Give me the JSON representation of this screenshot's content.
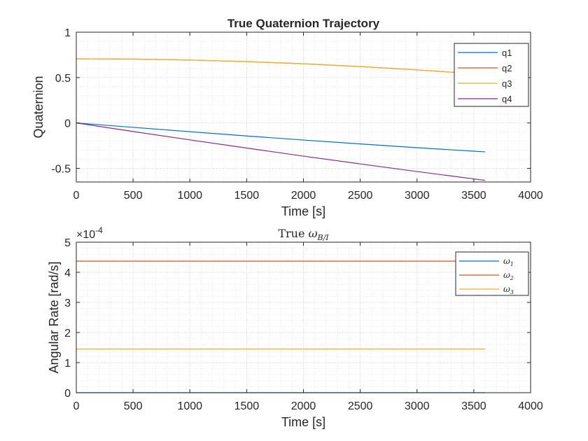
{
  "colors": {
    "c1": "#0072BD",
    "c2": "#D95319",
    "c3": "#EDB120",
    "c4": "#7E2F8E",
    "axis": "#262626",
    "grid_major": "#cfcfcf",
    "grid_minor": "#e3e3e3"
  },
  "chart_data": [
    {
      "type": "line",
      "title": "True Quaternion Trajectory",
      "xlabel": "Time [s]",
      "ylabel": "Quaternion",
      "xlim": [
        0,
        4000
      ],
      "ylim": [
        -0.65,
        1
      ],
      "xticks": [
        0,
        500,
        1000,
        1500,
        2000,
        2500,
        3000,
        3500,
        4000
      ],
      "yticks": [
        -0.5,
        0,
        0.5,
        1
      ],
      "xtick_labels": [
        "0",
        "500",
        "1000",
        "1500",
        "2000",
        "2500",
        "3000",
        "3500",
        "4000"
      ],
      "ytick_labels": [
        "-0.5",
        "0",
        "0.5",
        "1"
      ],
      "grid": "on (major + minor, dotted)",
      "legend_position": "top-right",
      "x": [
        0,
        500,
        1000,
        1500,
        2000,
        2500,
        3000,
        3500,
        3600
      ],
      "series": [
        {
          "name": "q1",
          "color": "#0072BD",
          "values": [
            0.0,
            -0.048,
            -0.096,
            -0.143,
            -0.188,
            -0.231,
            -0.272,
            -0.311,
            -0.318
          ]
        },
        {
          "name": "q2",
          "color": "#D95319",
          "values": [
            0.707,
            0.704,
            0.693,
            0.676,
            0.652,
            0.621,
            0.585,
            0.543,
            0.534
          ]
        },
        {
          "name": "q3",
          "color": "#EDB120",
          "values": [
            0.707,
            0.704,
            0.693,
            0.676,
            0.652,
            0.621,
            0.585,
            0.543,
            0.534
          ]
        },
        {
          "name": "q4",
          "color": "#7E2F8E",
          "values": [
            0.0,
            -0.094,
            -0.186,
            -0.276,
            -0.365,
            -0.451,
            -0.535,
            -0.616,
            -0.632
          ]
        }
      ]
    },
    {
      "type": "line",
      "title_prefix": "True",
      "title_symbol": "ω",
      "title_subscript": "B/I",
      "xlabel": "Time [s]",
      "ylabel": "Angular Rate [rad/s]",
      "y_exponent_base": "×10",
      "y_exponent": "-4",
      "xlim": [
        0,
        4000
      ],
      "ylim": [
        0,
        5
      ],
      "xticks": [
        0,
        500,
        1000,
        1500,
        2000,
        2500,
        3000,
        3500,
        4000
      ],
      "yticks": [
        0,
        1,
        2,
        3,
        4,
        5
      ],
      "xtick_labels": [
        "0",
        "500",
        "1000",
        "1500",
        "2000",
        "2500",
        "3000",
        "3500",
        "4000"
      ],
      "ytick_labels": [
        "0",
        "1",
        "2",
        "3",
        "4",
        "5"
      ],
      "grid": "on (major + minor, dotted)",
      "legend_position": "top-right",
      "x": [
        0,
        3600
      ],
      "series": [
        {
          "name": "ω",
          "sub": "1",
          "color": "#0072BD",
          "values": [
            0.0,
            0.0
          ]
        },
        {
          "name": "ω",
          "sub": "2",
          "color": "#D95319",
          "values": [
            4.37,
            4.37
          ]
        },
        {
          "name": "ω",
          "sub": "3",
          "color": "#EDB120",
          "values": [
            1.45,
            1.45
          ]
        }
      ]
    }
  ]
}
